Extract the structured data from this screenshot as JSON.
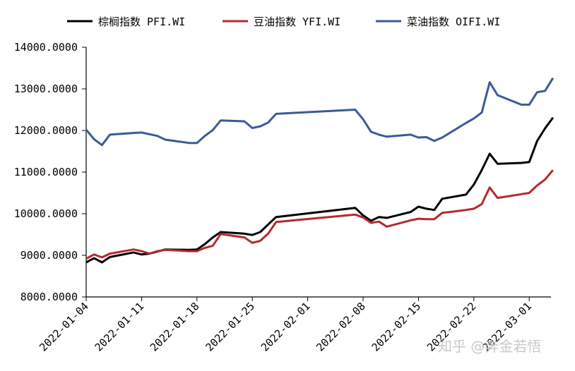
{
  "chart_data": {
    "type": "line",
    "title": "",
    "xlabel": "",
    "ylabel": "",
    "ylim": [
      8000,
      14000
    ],
    "y_ticks": [
      8000,
      9000,
      10000,
      11000,
      12000,
      13000,
      14000
    ],
    "y_tick_labels": [
      "8000.0000",
      "9000.0000",
      "10000.0000",
      "11000.0000",
      "12000.0000",
      "13000.0000",
      "14000.0000"
    ],
    "xlim": [
      "2022-01-04",
      "2022-03-04"
    ],
    "x_tick_labels": [
      "2022-01-04",
      "2022-01-11",
      "2022-01-18",
      "2022-01-25",
      "2022-02-01",
      "2022-02-08",
      "2022-02-15",
      "2022-02-22",
      "2022-03-01"
    ],
    "grid": false,
    "legend_position": "top",
    "series": [
      {
        "name": "棕榈指数 PFI.WI",
        "color": "#000000",
        "x": [
          "2022-01-04",
          "2022-01-05",
          "2022-01-06",
          "2022-01-07",
          "2022-01-10",
          "2022-01-11",
          "2022-01-12",
          "2022-01-13",
          "2022-01-14",
          "2022-01-17",
          "2022-01-18",
          "2022-01-19",
          "2022-01-20",
          "2022-01-21",
          "2022-01-24",
          "2022-01-25",
          "2022-01-26",
          "2022-01-27",
          "2022-01-28",
          "2022-02-07",
          "2022-02-08",
          "2022-02-09",
          "2022-02-10",
          "2022-02-11",
          "2022-02-14",
          "2022-02-15",
          "2022-02-16",
          "2022-02-17",
          "2022-02-18",
          "2022-02-21",
          "2022-02-22",
          "2022-02-23",
          "2022-02-24",
          "2022-02-25",
          "2022-02-28",
          "2022-03-01",
          "2022-03-02",
          "2022-03-03",
          "2022-03-04"
        ],
        "values": [
          8830,
          8930,
          8830,
          8960,
          9070,
          9020,
          9040,
          9090,
          9140,
          9130,
          9140,
          9270,
          9430,
          9560,
          9520,
          9490,
          9560,
          9740,
          9920,
          10140,
          9960,
          9830,
          9920,
          9900,
          10040,
          10170,
          10120,
          10090,
          10360,
          10460,
          10700,
          11050,
          11440,
          11200,
          11220,
          11240,
          11750,
          12050,
          12310
        ]
      },
      {
        "name": "豆油指数 YFI.WI",
        "color": "#b22a33",
        "x": [
          "2022-01-04",
          "2022-01-05",
          "2022-01-06",
          "2022-01-07",
          "2022-01-10",
          "2022-01-11",
          "2022-01-12",
          "2022-01-13",
          "2022-01-14",
          "2022-01-17",
          "2022-01-18",
          "2022-01-19",
          "2022-01-20",
          "2022-01-21",
          "2022-01-24",
          "2022-01-25",
          "2022-01-26",
          "2022-01-27",
          "2022-01-28",
          "2022-02-07",
          "2022-02-08",
          "2022-02-09",
          "2022-02-10",
          "2022-02-11",
          "2022-02-14",
          "2022-02-15",
          "2022-02-16",
          "2022-02-17",
          "2022-02-18",
          "2022-02-21",
          "2022-02-22",
          "2022-02-23",
          "2022-02-24",
          "2022-02-25",
          "2022-02-28",
          "2022-03-01",
          "2022-03-02",
          "2022-03-03",
          "2022-03-04"
        ],
        "values": [
          8920,
          9020,
          8950,
          9040,
          9140,
          9100,
          9040,
          9100,
          9130,
          9100,
          9100,
          9180,
          9230,
          9510,
          9430,
          9300,
          9350,
          9520,
          9800,
          9980,
          9910,
          9780,
          9810,
          9690,
          9840,
          9880,
          9870,
          9870,
          10020,
          10090,
          10120,
          10230,
          10630,
          10380,
          10470,
          10500,
          10680,
          10820,
          11050
        ]
      },
      {
        "name": "菜油指数 OIFI.WI",
        "color": "#3b5a99",
        "x": [
          "2022-01-04",
          "2022-01-05",
          "2022-01-06",
          "2022-01-07",
          "2022-01-10",
          "2022-01-11",
          "2022-01-12",
          "2022-01-13",
          "2022-01-14",
          "2022-01-17",
          "2022-01-18",
          "2022-01-19",
          "2022-01-20",
          "2022-01-21",
          "2022-01-24",
          "2022-01-25",
          "2022-01-26",
          "2022-01-27",
          "2022-01-28",
          "2022-02-07",
          "2022-02-08",
          "2022-02-09",
          "2022-02-10",
          "2022-02-11",
          "2022-02-14",
          "2022-02-15",
          "2022-02-16",
          "2022-02-17",
          "2022-02-18",
          "2022-02-21",
          "2022-02-22",
          "2022-02-23",
          "2022-02-24",
          "2022-02-25",
          "2022-02-28",
          "2022-03-01",
          "2022-03-02",
          "2022-03-03",
          "2022-03-04"
        ],
        "values": [
          12020,
          11790,
          11650,
          11900,
          11940,
          11950,
          11910,
          11870,
          11780,
          11700,
          11700,
          11870,
          12010,
          12240,
          12220,
          12060,
          12100,
          12190,
          12400,
          12500,
          12270,
          11970,
          11900,
          11850,
          11900,
          11830,
          11840,
          11750,
          11830,
          12180,
          12290,
          12430,
          13160,
          12850,
          12620,
          12620,
          12920,
          12950,
          13260
        ]
      }
    ],
    "watermark": "知乎 @奔金若悟"
  }
}
